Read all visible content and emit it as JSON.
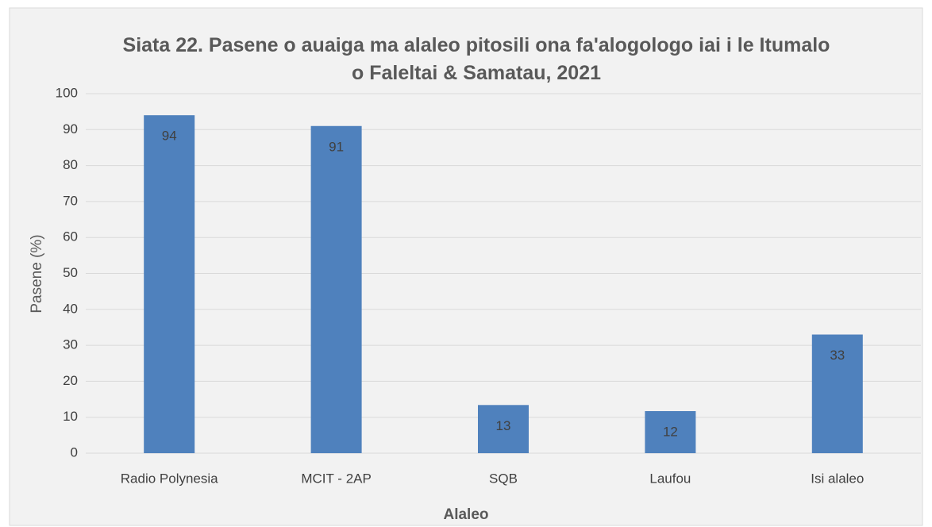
{
  "chart_data": {
    "type": "bar",
    "title": "Siata 22. Pasene o auaiga ma alaleo pitosili ona fa'alogologo iai i le Itumalo o Faleltai & Samatau, 2021",
    "xlabel": "Alaleo",
    "ylabel": "Pasene (%)",
    "categories": [
      "Radio Polynesia",
      "MCIT - 2AP",
      "SQB",
      "Laufou",
      "Isi alaleo"
    ],
    "values": [
      94,
      91,
      13.4,
      11.7,
      33
    ],
    "value_labels": [
      "94",
      "91",
      "13",
      "12",
      "33"
    ],
    "color": "#4f81bd",
    "ylim": [
      0,
      100
    ],
    "yticks": [
      0,
      10,
      20,
      30,
      40,
      50,
      60,
      70,
      80,
      90,
      100
    ],
    "grid": true
  }
}
